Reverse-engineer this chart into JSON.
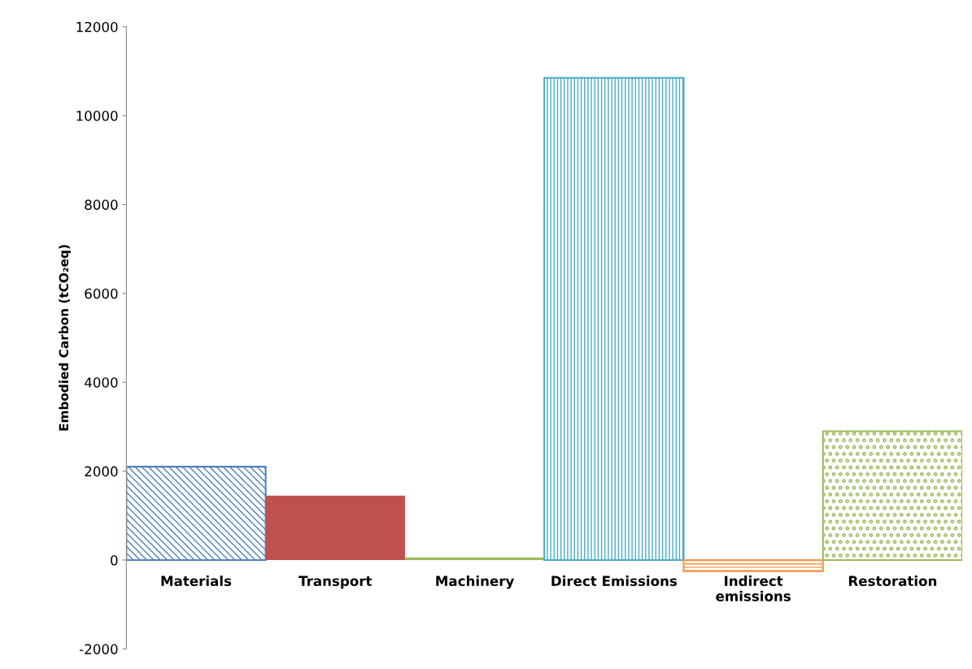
{
  "chart_data": {
    "type": "bar",
    "ylabel": "Embodied Carbon (tCO₂eq)",
    "categories": [
      "Materials",
      "Transport",
      "Machinery",
      "Direct Emissions",
      "Indirect emissions",
      "Restoration"
    ],
    "values": [
      2100,
      1450,
      60,
      10850,
      -250,
      2900
    ],
    "colors": [
      "#4f81bd",
      "#c0504d",
      "#9bbb59",
      "#4bacc6",
      "#f79646",
      "#9bbb59"
    ],
    "ylim": [
      -2000,
      12000
    ],
    "yticks": [
      -2000,
      0,
      2000,
      4000,
      6000,
      8000,
      10000,
      12000
    ],
    "grid": false,
    "legend": false
  }
}
